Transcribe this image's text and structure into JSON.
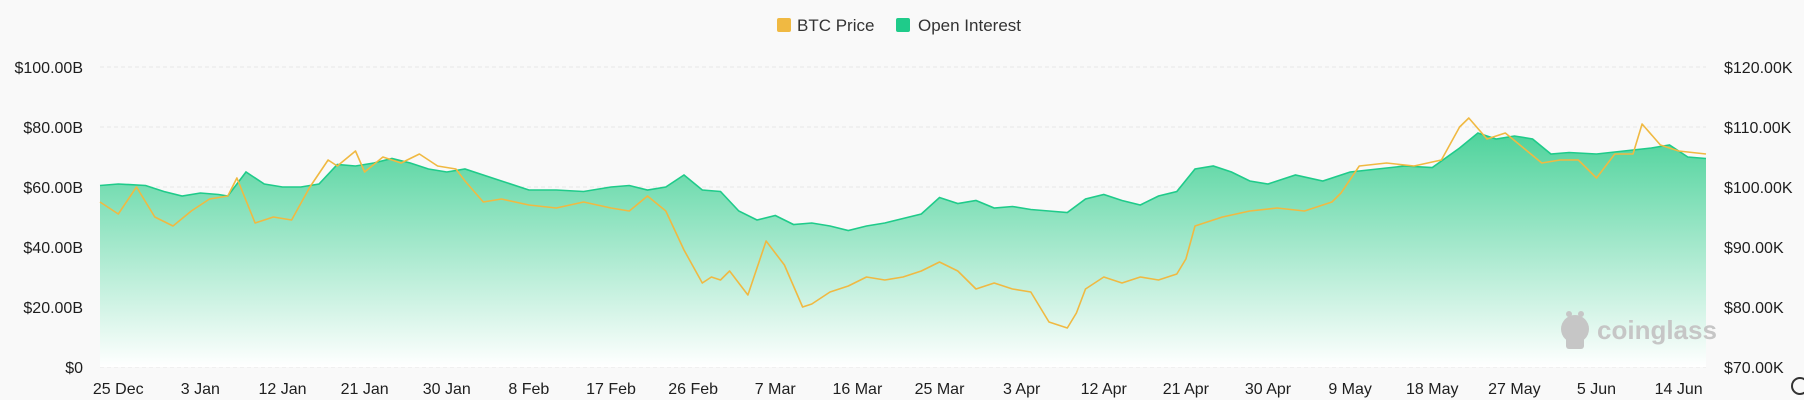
{
  "watermark": {
    "text": "coinglass"
  },
  "colors": {
    "btc_price": "#F0B942",
    "open_interest": "#1FCB8A",
    "area_top": "#4FD39C",
    "area_bottom": "#FFFFFF",
    "grid": "#E6E6E6",
    "background": "#F9F9F9"
  },
  "chart_data": {
    "type": "area",
    "legend_position": "top-center",
    "grid": true,
    "legend": [
      "BTC Price",
      "Open Interest"
    ],
    "x_tick_labels": [
      "25 Dec",
      "3 Jan",
      "12 Jan",
      "21 Jan",
      "30 Jan",
      "8 Feb",
      "17 Feb",
      "26 Feb",
      "7 Mar",
      "16 Mar",
      "25 Mar",
      "3 Apr",
      "12 Apr",
      "21 Apr",
      "30 Apr",
      "9 May",
      "18 May",
      "27 May",
      "5 Jun",
      "14 Jun"
    ],
    "y_left": {
      "range": [
        0,
        100
      ],
      "ticks": [
        0,
        20,
        40,
        60,
        80,
        100
      ],
      "tick_labels": [
        "$0",
        "$20.00B",
        "$40.00B",
        "$60.00B",
        "$80.00B",
        "$100.00B"
      ]
    },
    "y_right": {
      "range": [
        70000,
        120000
      ],
      "ticks": [
        70000,
        80000,
        90000,
        100000,
        110000,
        120000
      ],
      "tick_labels": [
        "$70.00K",
        "$80.00K",
        "$90.00K",
        "$100.00K",
        "$110.00K",
        "$120.00K"
      ]
    },
    "x_range": [
      "2024-12-23",
      "2025-06-17"
    ],
    "series": [
      {
        "name": "Open Interest",
        "unit": "B USD",
        "axis": "left",
        "x": [
          "2024-12-23",
          "2024-12-25",
          "2024-12-28",
          "2024-12-30",
          "2025-01-01",
          "2025-01-03",
          "2025-01-05",
          "2025-01-06",
          "2025-01-08",
          "2025-01-10",
          "2025-01-12",
          "2025-01-14",
          "2025-01-16",
          "2025-01-18",
          "2025-01-20",
          "2025-01-22",
          "2025-01-24",
          "2025-01-26",
          "2025-01-28",
          "2025-01-30",
          "2025-02-01",
          "2025-02-03",
          "2025-02-05",
          "2025-02-08",
          "2025-02-11",
          "2025-02-14",
          "2025-02-17",
          "2025-02-19",
          "2025-02-21",
          "2025-02-23",
          "2025-02-25",
          "2025-02-27",
          "2025-03-01",
          "2025-03-03",
          "2025-03-05",
          "2025-03-07",
          "2025-03-09",
          "2025-03-11",
          "2025-03-13",
          "2025-03-15",
          "2025-03-17",
          "2025-03-19",
          "2025-03-21",
          "2025-03-23",
          "2025-03-25",
          "2025-03-27",
          "2025-03-29",
          "2025-03-31",
          "2025-04-02",
          "2025-04-04",
          "2025-04-06",
          "2025-04-08",
          "2025-04-10",
          "2025-04-12",
          "2025-04-14",
          "2025-04-16",
          "2025-04-18",
          "2025-04-20",
          "2025-04-22",
          "2025-04-24",
          "2025-04-26",
          "2025-04-28",
          "2025-04-30",
          "2025-05-03",
          "2025-05-06",
          "2025-05-09",
          "2025-05-12",
          "2025-05-15",
          "2025-05-18",
          "2025-05-21",
          "2025-05-23",
          "2025-05-25",
          "2025-05-27",
          "2025-05-29",
          "2025-05-31",
          "2025-06-02",
          "2025-06-05",
          "2025-06-08",
          "2025-06-11",
          "2025-06-13",
          "2025-06-15",
          "2025-06-17"
        ],
        "values": [
          60.5,
          61,
          60.5,
          58.5,
          57,
          58,
          57.5,
          57,
          65,
          61,
          60,
          60,
          61,
          67.5,
          67,
          68,
          69.5,
          68,
          66,
          65,
          66,
          64,
          62,
          59,
          59,
          58.5,
          60,
          60.5,
          59,
          60,
          64,
          59,
          58.5,
          52,
          49,
          50.5,
          47.5,
          48,
          47,
          45.5,
          47,
          48,
          49.5,
          51,
          56.5,
          54.5,
          55.5,
          53,
          53.5,
          52.5,
          52,
          51.5,
          56,
          57.5,
          55.5,
          54,
          57,
          58.5,
          66,
          67,
          65,
          62,
          61,
          64,
          62,
          65,
          66,
          67,
          66.5,
          73,
          78,
          76,
          77,
          76,
          71,
          71.5,
          71,
          72,
          73,
          74,
          70,
          69.5
        ]
      },
      {
        "name": "BTC Price",
        "unit": "USD",
        "axis": "right",
        "x": [
          "2024-12-23",
          "2024-12-25",
          "2024-12-27",
          "2024-12-29",
          "2024-12-31",
          "2025-01-02",
          "2025-01-04",
          "2025-01-06",
          "2025-01-07",
          "2025-01-09",
          "2025-01-11",
          "2025-01-13",
          "2025-01-15",
          "2025-01-17",
          "2025-01-18",
          "2025-01-20",
          "2025-01-21",
          "2025-01-23",
          "2025-01-25",
          "2025-01-27",
          "2025-01-29",
          "2025-01-31",
          "2025-02-01",
          "2025-02-03",
          "2025-02-05",
          "2025-02-08",
          "2025-02-11",
          "2025-02-14",
          "2025-02-17",
          "2025-02-19",
          "2025-02-21",
          "2025-02-23",
          "2025-02-25",
          "2025-02-27",
          "2025-02-28",
          "2025-03-01",
          "2025-03-02",
          "2025-03-04",
          "2025-03-06",
          "2025-03-08",
          "2025-03-10",
          "2025-03-11",
          "2025-03-13",
          "2025-03-15",
          "2025-03-17",
          "2025-03-19",
          "2025-03-21",
          "2025-03-23",
          "2025-03-25",
          "2025-03-27",
          "2025-03-29",
          "2025-03-31",
          "2025-04-02",
          "2025-04-04",
          "2025-04-06",
          "2025-04-08",
          "2025-04-09",
          "2025-04-10",
          "2025-04-12",
          "2025-04-14",
          "2025-04-16",
          "2025-04-18",
          "2025-04-20",
          "2025-04-21",
          "2025-04-22",
          "2025-04-25",
          "2025-04-28",
          "2025-05-01",
          "2025-05-04",
          "2025-05-07",
          "2025-05-08",
          "2025-05-10",
          "2025-05-13",
          "2025-05-16",
          "2025-05-19",
          "2025-05-21",
          "2025-05-22",
          "2025-05-24",
          "2025-05-26",
          "2025-05-28",
          "2025-05-30",
          "2025-06-01",
          "2025-06-03",
          "2025-06-05",
          "2025-06-07",
          "2025-06-09",
          "2025-06-10",
          "2025-06-12",
          "2025-06-14",
          "2025-06-17"
        ],
        "values": [
          97500,
          95500,
          100000,
          95000,
          93500,
          96000,
          98000,
          98500,
          101500,
          94000,
          95000,
          94500,
          100000,
          104500,
          103500,
          106000,
          102500,
          105000,
          104000,
          105500,
          103500,
          103000,
          101000,
          97500,
          98000,
          97000,
          96500,
          97500,
          96500,
          96000,
          98500,
          96000,
          89500,
          84000,
          85000,
          84500,
          86000,
          82000,
          91000,
          87000,
          80000,
          80500,
          82500,
          83500,
          85000,
          84500,
          85000,
          86000,
          87500,
          86000,
          83000,
          84000,
          83000,
          82500,
          77500,
          76500,
          79000,
          83000,
          85000,
          84000,
          85000,
          84500,
          85500,
          88000,
          93500,
          95000,
          96000,
          96500,
          96000,
          97500,
          99000,
          103500,
          104000,
          103500,
          104500,
          110000,
          111500,
          108000,
          109000,
          106500,
          104000,
          104500,
          104500,
          101500,
          105500,
          105500,
          110500,
          107000,
          106000,
          105500
        ]
      }
    ]
  }
}
